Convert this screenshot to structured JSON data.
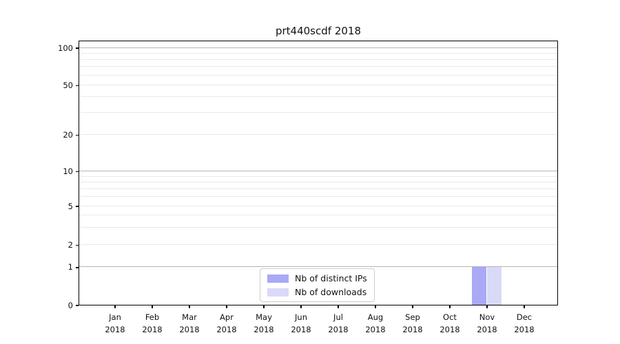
{
  "title": "prt440scdf 2018",
  "chart_data": {
    "type": "bar",
    "title": "prt440scdf 2018",
    "categories": [
      "Jan 2018",
      "Feb 2018",
      "Mar 2018",
      "Apr 2018",
      "May 2018",
      "Jun 2018",
      "Jul 2018",
      "Aug 2018",
      "Sep 2018",
      "Oct 2018",
      "Nov 2018",
      "Dec 2018"
    ],
    "series": [
      {
        "name": "Nb of distinct IPs",
        "color": "#a9a9f5",
        "values": [
          0,
          0,
          0,
          0,
          0,
          0,
          0,
          0,
          0,
          0,
          1,
          0
        ]
      },
      {
        "name": "Nb of downloads",
        "color": "#d9d9f8",
        "values": [
          0,
          0,
          0,
          0,
          0,
          0,
          0,
          0,
          0,
          0,
          1,
          0
        ]
      }
    ],
    "xlabel": "",
    "ylabel": "",
    "yticks": [
      0,
      1,
      2,
      5,
      10,
      20,
      50,
      100
    ],
    "yscale": "symlog",
    "ylim": [
      0,
      110
    ],
    "grid": "horizontal",
    "grid_major_at": [
      1,
      10,
      100
    ],
    "grid_minor_at": [
      2,
      3,
      4,
      5,
      6,
      7,
      8,
      9,
      20,
      30,
      40,
      50,
      60,
      70,
      80,
      90
    ],
    "legend_position": "lower center",
    "colors": {
      "major_grid": "#b5b5b5",
      "minor_grid": "#e9e9e9",
      "spine": "#000000",
      "background": "#ffffff"
    }
  }
}
